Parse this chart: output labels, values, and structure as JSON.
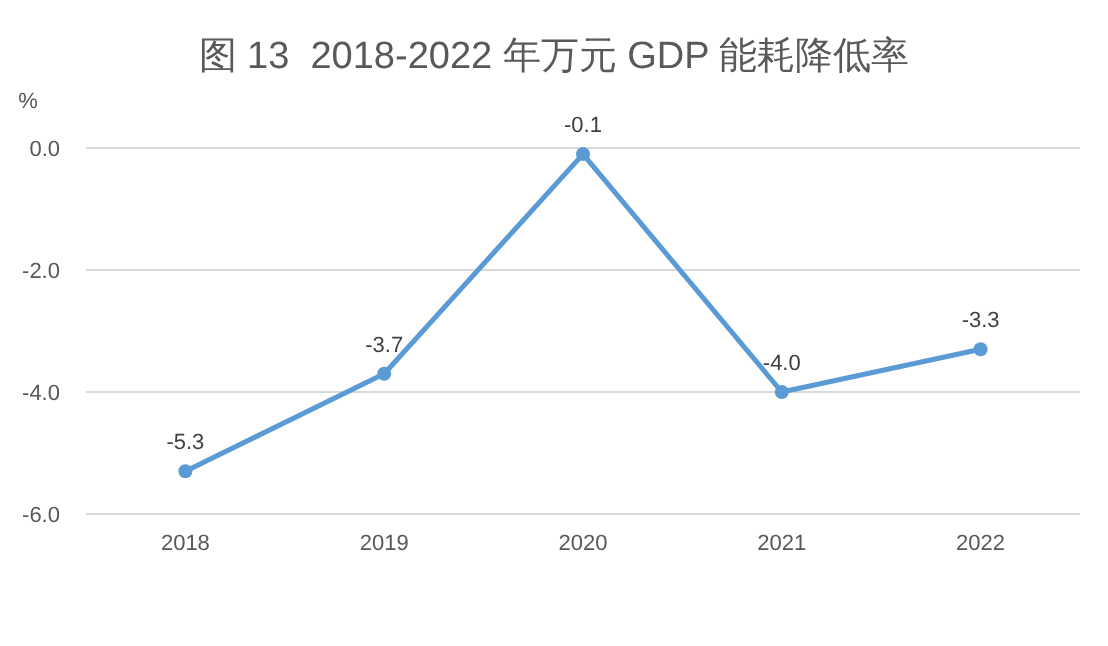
{
  "chart_data": {
    "type": "line",
    "title": "图 13  2018-2022 年万元 GDP 能耗降低率",
    "ylabel": "%",
    "categories": [
      "2018",
      "2019",
      "2020",
      "2021",
      "2022"
    ],
    "series": [
      {
        "color": "#5b9bd5",
        "values": [
          -5.3,
          -3.7,
          -0.1,
          -4.0,
          -3.3
        ],
        "value_labels": [
          "-5.3",
          "-3.7",
          "-0.1",
          "-4.0",
          "-3.3"
        ]
      }
    ],
    "ylim": [
      -6,
      0
    ],
    "yticks": [
      {
        "value": -6,
        "label": "-6.0"
      },
      {
        "value": -4,
        "label": "-4.0"
      },
      {
        "value": -2,
        "label": "-2.0"
      },
      {
        "value": 0,
        "label": "0.0"
      }
    ],
    "grid": "y",
    "marker": "circle",
    "line_style": "solid"
  }
}
